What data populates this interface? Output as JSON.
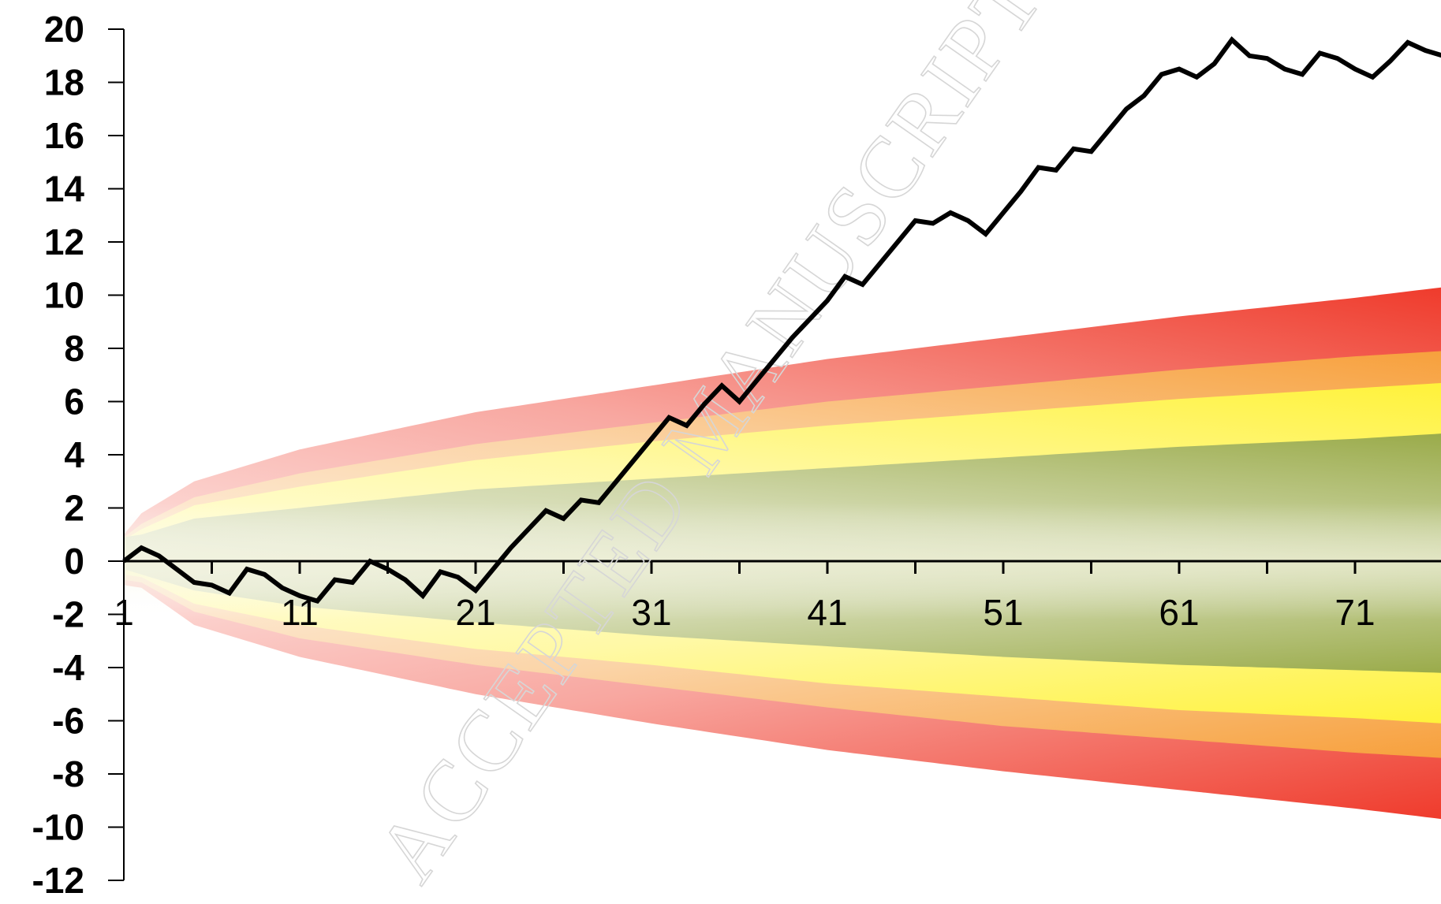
{
  "chart_data": {
    "type": "area",
    "title": "",
    "xlabel": "",
    "ylabel": "",
    "xlim": [
      1,
      76
    ],
    "ylim": [
      -12,
      20
    ],
    "yticks": [
      20,
      18,
      16,
      14,
      12,
      10,
      8,
      6,
      4,
      2,
      0,
      -2,
      -4,
      -6,
      -8,
      -10,
      -12
    ],
    "xticks": [
      1,
      11,
      21,
      31,
      41,
      51,
      61,
      71
    ],
    "grid": false,
    "legend": "none",
    "fan_bands": [
      {
        "name": "",
        "color": "#ef3b2c",
        "upper": [
          [
            1,
            1.0
          ],
          [
            2,
            1.8
          ],
          [
            5,
            3.0
          ],
          [
            11,
            4.2
          ],
          [
            21,
            5.6
          ],
          [
            31,
            6.6
          ],
          [
            41,
            7.6
          ],
          [
            51,
            8.4
          ],
          [
            61,
            9.2
          ],
          [
            71,
            9.9
          ],
          [
            76,
            10.3
          ]
        ],
        "lower": [
          [
            1,
            -0.9
          ],
          [
            2,
            -1.0
          ],
          [
            5,
            -2.4
          ],
          [
            11,
            -3.6
          ],
          [
            21,
            -5.0
          ],
          [
            31,
            -6.1
          ],
          [
            41,
            -7.1
          ],
          [
            51,
            -7.9
          ],
          [
            61,
            -8.6
          ],
          [
            71,
            -9.3
          ],
          [
            76,
            -9.7
          ]
        ]
      },
      {
        "name": "",
        "color": "#f7a03c",
        "upper": [
          [
            1,
            0.9
          ],
          [
            2,
            1.4
          ],
          [
            5,
            2.4
          ],
          [
            11,
            3.3
          ],
          [
            21,
            4.4
          ],
          [
            31,
            5.2
          ],
          [
            41,
            6.0
          ],
          [
            51,
            6.6
          ],
          [
            61,
            7.2
          ],
          [
            71,
            7.7
          ],
          [
            76,
            7.9
          ]
        ],
        "lower": [
          [
            1,
            -0.7
          ],
          [
            2,
            -0.8
          ],
          [
            5,
            -1.9
          ],
          [
            11,
            -2.9
          ],
          [
            21,
            -3.9
          ],
          [
            31,
            -4.7
          ],
          [
            41,
            -5.5
          ],
          [
            51,
            -6.2
          ],
          [
            61,
            -6.7
          ],
          [
            71,
            -7.2
          ],
          [
            76,
            -7.4
          ]
        ]
      },
      {
        "name": "",
        "color": "#fff23a",
        "upper": [
          [
            1,
            0.8
          ],
          [
            2,
            1.2
          ],
          [
            5,
            2.1
          ],
          [
            11,
            2.8
          ],
          [
            21,
            3.8
          ],
          [
            31,
            4.5
          ],
          [
            41,
            5.1
          ],
          [
            51,
            5.6
          ],
          [
            61,
            6.1
          ],
          [
            71,
            6.5
          ],
          [
            76,
            6.7
          ]
        ],
        "lower": [
          [
            1,
            -0.5
          ],
          [
            2,
            -0.6
          ],
          [
            5,
            -1.6
          ],
          [
            11,
            -2.4
          ],
          [
            21,
            -3.3
          ],
          [
            31,
            -3.9
          ],
          [
            41,
            -4.6
          ],
          [
            51,
            -5.1
          ],
          [
            61,
            -5.6
          ],
          [
            71,
            -5.9
          ],
          [
            76,
            -6.1
          ]
        ]
      },
      {
        "name": "",
        "color": "#9aab4a",
        "upper": [
          [
            1,
            0.9
          ],
          [
            2,
            1.0
          ],
          [
            5,
            1.6
          ],
          [
            11,
            2.0
          ],
          [
            21,
            2.7
          ],
          [
            31,
            3.1
          ],
          [
            41,
            3.5
          ],
          [
            51,
            3.9
          ],
          [
            61,
            4.3
          ],
          [
            71,
            4.6
          ],
          [
            76,
            4.8
          ]
        ],
        "lower": [
          [
            1,
            -0.3
          ],
          [
            2,
            -0.5
          ],
          [
            5,
            -1.1
          ],
          [
            11,
            -1.7
          ],
          [
            21,
            -2.3
          ],
          [
            31,
            -2.8
          ],
          [
            41,
            -3.2
          ],
          [
            51,
            -3.6
          ],
          [
            61,
            -3.9
          ],
          [
            71,
            -4.1
          ],
          [
            76,
            -4.2
          ]
        ]
      }
    ],
    "series": [
      {
        "name": "",
        "color": "#000000",
        "x": [
          1,
          2,
          3,
          4,
          5,
          6,
          7,
          8,
          9,
          10,
          11,
          12,
          13,
          14,
          15,
          16,
          17,
          18,
          19,
          20,
          21,
          22,
          23,
          24,
          25,
          26,
          27,
          28,
          29,
          30,
          31,
          32,
          33,
          34,
          35,
          36,
          37,
          38,
          39,
          40,
          41,
          42,
          43,
          44,
          45,
          46,
          47,
          48,
          49,
          50,
          51,
          52,
          53,
          54,
          55,
          56,
          57,
          58,
          59,
          60,
          61,
          62,
          63,
          64,
          65,
          66,
          67,
          68,
          69,
          70,
          71,
          72,
          73,
          74,
          75,
          76
        ],
        "values": [
          0,
          0.5,
          0.2,
          -0.3,
          -0.8,
          -0.9,
          -1.2,
          -0.3,
          -0.5,
          -1.0,
          -1.3,
          -1.5,
          -0.7,
          -0.8,
          0,
          -0.3,
          -0.7,
          -1.3,
          -0.4,
          -0.6,
          -1.1,
          -0.3,
          0.5,
          1.2,
          1.9,
          1.6,
          2.3,
          2.2,
          3.0,
          3.8,
          4.6,
          5.4,
          5.1,
          5.9,
          6.6,
          6.0,
          6.8,
          7.6,
          8.4,
          9.1,
          9.8,
          10.7,
          10.4,
          11.2,
          12.0,
          12.8,
          12.7,
          13.1,
          12.8,
          12.3,
          13.1,
          13.9,
          14.8,
          14.7,
          15.5,
          15.4,
          16.2,
          17.0,
          17.5,
          18.3,
          18.5,
          18.2,
          18.7,
          19.6,
          19.0,
          18.9,
          18.5,
          18.3,
          19.1,
          18.9,
          18.5,
          18.2,
          18.8,
          19.5,
          19.2,
          19.0
        ]
      }
    ]
  },
  "watermark": "ACCEPTED MANUSCRIPT"
}
